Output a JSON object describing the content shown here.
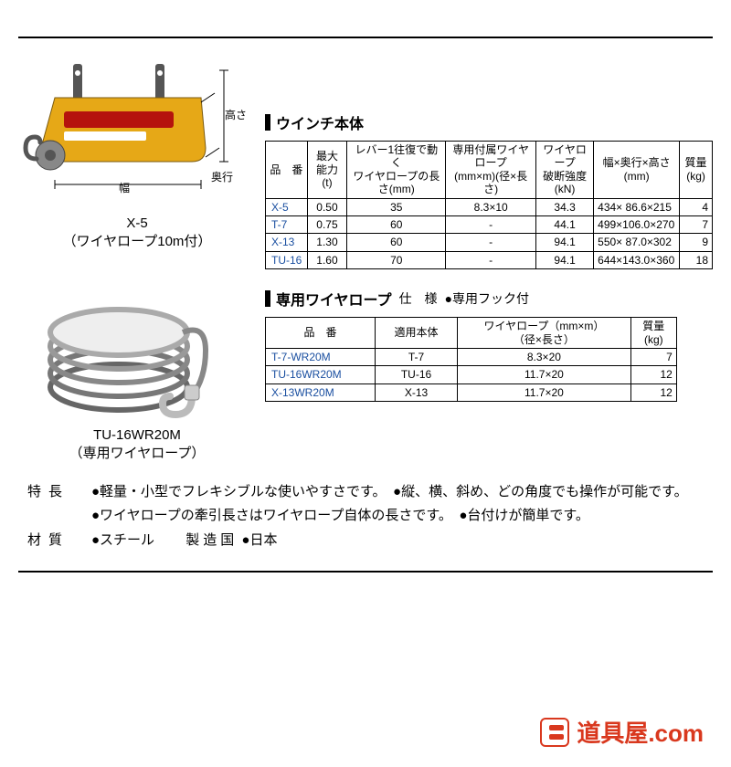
{
  "colors": {
    "rule": "#000000",
    "model_link": "#1a4fa0",
    "brand": "#d9381e",
    "winch_body": "#e6a817"
  },
  "product1": {
    "caption_line1": "X-5",
    "caption_line2": "（ワイヤロープ10m付）",
    "dim_height": "高さ",
    "dim_width": "幅",
    "dim_depth": "奥行"
  },
  "product2": {
    "caption_line1": "TU-16WR20M",
    "caption_line2": "（専用ワイヤロープ）"
  },
  "section1": {
    "title": "ウインチ本体",
    "headers": [
      "品　番",
      "最大能力\n(t)",
      "レバー1往復で動く\nワイヤロープの長さ(mm)",
      "専用付属ワイヤロープ\n(mm×m)(径×長さ)",
      "ワイヤロープ\n破断強度(kN)",
      "幅×奥行×高さ\n(mm)",
      "質量\n(kg)"
    ],
    "rows": [
      {
        "model": "X-5",
        "cap": "0.50",
        "lever": "35",
        "rope": "8.3×10",
        "break": "34.3",
        "dims": "434× 86.6×215",
        "wt": "4"
      },
      {
        "model": "T-7",
        "cap": "0.75",
        "lever": "60",
        "rope": "-",
        "break": "44.1",
        "dims": "499×106.0×270",
        "wt": "7"
      },
      {
        "model": "X-13",
        "cap": "1.30",
        "lever": "60",
        "rope": "-",
        "break": "94.1",
        "dims": "550× 87.0×302",
        "wt": "9"
      },
      {
        "model": "TU-16",
        "cap": "1.60",
        "lever": "70",
        "rope": "-",
        "break": "94.1",
        "dims": "644×143.0×360",
        "wt": "18"
      }
    ]
  },
  "section2": {
    "title": "専用ワイヤロープ",
    "spec_label": "仕　様",
    "spec_text": "●専用フック付",
    "headers": [
      "品　番",
      "適用本体",
      "ワイヤロープ（mm×m）\n（径×長さ）",
      "質量\n(kg)"
    ],
    "rows": [
      {
        "model": "T-7-WR20M",
        "body": "T-7",
        "rope": "8.3×20",
        "wt": "7"
      },
      {
        "model": "TU-16WR20M",
        "body": "TU-16",
        "rope": "11.7×20",
        "wt": "12"
      },
      {
        "model": "X-13WR20M",
        "body": "X-13",
        "rope": "11.7×20",
        "wt": "12"
      }
    ]
  },
  "features": {
    "label_features": "特長",
    "features_text": "●軽量・小型でフレキシブルな使いやすさです。　●縦、横、斜め、どの角度でも操作が可能です。\n●ワイヤロープの牽引長さはワイヤロープ自体の長さです。　●台付けが簡単です。",
    "label_material": "材質",
    "material_text": "●スチール",
    "label_country": "製造国",
    "country_text": "●日本"
  },
  "footer": {
    "text": "道具屋.com"
  }
}
